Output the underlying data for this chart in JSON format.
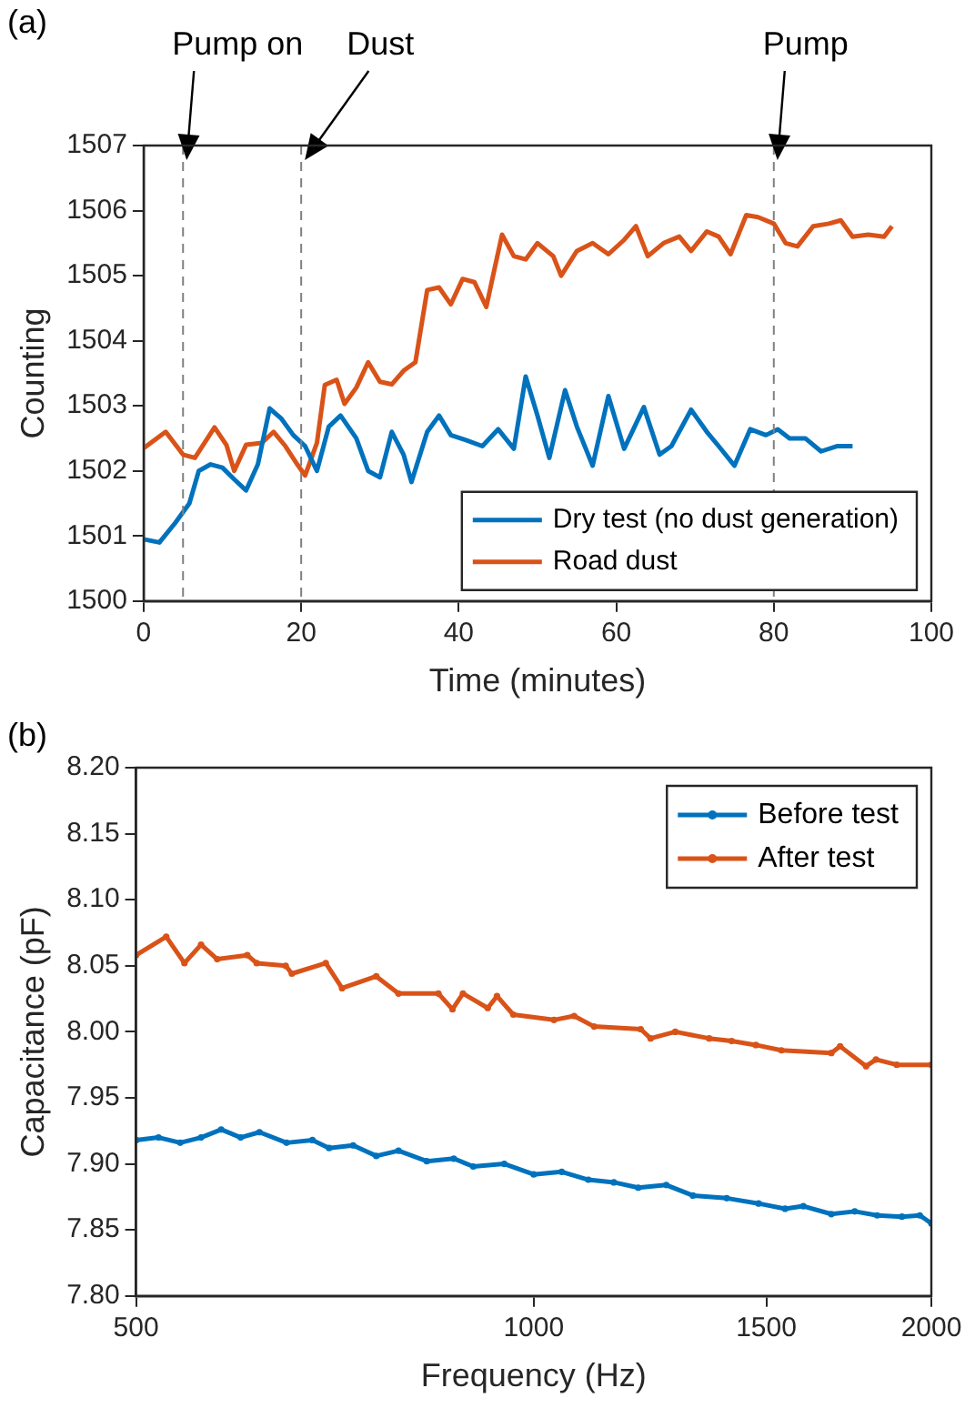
{
  "chart_data": [
    {
      "type": "line",
      "xlabel": "Time (minutes)",
      "ylabel": "Counting",
      "xlim": [
        0,
        100
      ],
      "xticks": [
        0,
        20,
        40,
        60,
        80,
        100
      ],
      "ylim": [
        1500,
        1507
      ],
      "yticks": [
        1500,
        1501,
        1502,
        1503,
        1504,
        1505,
        1506,
        1507
      ],
      "grid": false,
      "legend": "bottom right",
      "annotations": [
        "(a)"
      ],
      "ref_lines": [
        {
          "axis": "x",
          "value": 5,
          "label": "Pump on",
          "color": "#808080",
          "line_style": "dashed"
        },
        {
          "axis": "x",
          "value": 20,
          "label": "Dust",
          "color": "#808080",
          "line_style": "dashed"
        },
        {
          "axis": "x",
          "value": 80,
          "label": "Pump",
          "color": "#808080",
          "line_style": "dashed"
        }
      ],
      "series": [
        {
          "name": "Dry test (no dust generation)",
          "color": "#0072bd",
          "x": [
            0,
            2,
            4,
            5.8,
            7,
            8.5,
            10,
            11.5,
            13,
            14.5,
            16,
            17.5,
            19,
            20.5,
            22,
            23.5,
            25,
            27,
            28.5,
            30,
            31.5,
            33,
            34,
            36,
            37.5,
            39,
            41,
            43,
            45,
            47,
            48.5,
            50,
            51.5,
            53.5,
            55,
            57,
            59,
            61,
            63.5,
            65.5,
            67,
            69.5,
            71.5,
            73,
            75,
            77,
            79,
            80.5,
            82,
            84,
            86,
            88,
            90
          ],
          "values": [
            1500.95,
            1500.9,
            1501.2,
            1501.5,
            1502,
            1502.1,
            1502.05,
            1501.87,
            1501.7,
            1502.1,
            1502.96,
            1502.8,
            1502.55,
            1502.38,
            1502,
            1502.68,
            1502.85,
            1502.5,
            1502,
            1501.9,
            1502.6,
            1502.25,
            1501.83,
            1502.6,
            1502.85,
            1502.55,
            1502.47,
            1502.38,
            1502.64,
            1502.34,
            1503.45,
            1502.85,
            1502.2,
            1503.24,
            1502.68,
            1502.08,
            1503.15,
            1502.34,
            1502.98,
            1502.25,
            1502.38,
            1502.94,
            1502.6,
            1502.38,
            1502.08,
            1502.64,
            1502.55,
            1502.64,
            1502.5,
            1502.5,
            1502.3,
            1502.38,
            1502.38
          ]
        },
        {
          "name": "Road dust",
          "color": "#d95319",
          "x": [
            0,
            2.8,
            5,
            6.5,
            9,
            10.5,
            11.5,
            13,
            15,
            16.5,
            18,
            19.5,
            20.5,
            22,
            23,
            24.5,
            25.5,
            27,
            28.5,
            30,
            31.5,
            33,
            34.5,
            36,
            37.5,
            39,
            40.5,
            42,
            43.5,
            44.5,
            45.5,
            47,
            48.5,
            50,
            52,
            53,
            55,
            57,
            59,
            61,
            62.5,
            64,
            66,
            68,
            69.5,
            71.5,
            73,
            74.5,
            76.5,
            78,
            80,
            81.5,
            83,
            85,
            87,
            88.5,
            90,
            92,
            94,
            95
          ],
          "values": [
            1502.35,
            1502.6,
            1502.25,
            1502.2,
            1502.67,
            1502.4,
            1502,
            1502.4,
            1502.43,
            1502.6,
            1502.38,
            1502.1,
            1501.93,
            1502.43,
            1503.32,
            1503.4,
            1503.03,
            1503.28,
            1503.67,
            1503.37,
            1503.33,
            1503.54,
            1503.67,
            1504.78,
            1504.82,
            1504.56,
            1504.95,
            1504.9,
            1504.52,
            1505.08,
            1505.63,
            1505.3,
            1505.25,
            1505.5,
            1505.3,
            1505,
            1505.38,
            1505.5,
            1505.33,
            1505.55,
            1505.76,
            1505.3,
            1505.5,
            1505.6,
            1505.38,
            1505.68,
            1505.6,
            1505.33,
            1505.93,
            1505.9,
            1505.8,
            1505.5,
            1505.45,
            1505.76,
            1505.8,
            1505.85,
            1505.6,
            1505.63,
            1505.6,
            1505.76
          ]
        }
      ]
    },
    {
      "type": "line",
      "xlabel": "Frequency (Hz)",
      "ylabel": "Capacitance (pF)",
      "log": "x",
      "xlim": [
        500,
        2000
      ],
      "xticks": [
        500,
        1000,
        1500,
        2000
      ],
      "ylim": [
        7.8,
        8.2
      ],
      "yticks": [
        {
          "value": 7.8,
          "label": "7.80"
        },
        {
          "value": 7.85,
          "label": "7.85"
        },
        {
          "value": 7.9,
          "label": "7.90"
        },
        {
          "value": 7.95,
          "label": "7.95"
        },
        {
          "value": 8,
          "label": "8.00"
        },
        {
          "value": 8.05,
          "label": "8.05"
        },
        {
          "value": 8.1,
          "label": "8.10"
        },
        {
          "value": 8.15,
          "label": "8.15"
        },
        {
          "value": 8.2,
          "label": "8.20"
        }
      ],
      "grid": false,
      "legend": "top right",
      "marker": "circle",
      "annotations": [
        "(b)"
      ],
      "series": [
        {
          "name": "Before test",
          "color": "#0072bd",
          "x": [
            500,
            520,
            540,
            560,
            580,
            600,
            620,
            650,
            680,
            700,
            730,
            760,
            790,
            830,
            870,
            900,
            950,
            1000,
            1050,
            1100,
            1150,
            1200,
            1260,
            1320,
            1400,
            1480,
            1550,
            1600,
            1680,
            1750,
            1820,
            1900,
            1960,
            2000
          ],
          "values": [
            7.918,
            7.92,
            7.916,
            7.92,
            7.926,
            7.92,
            7.924,
            7.916,
            7.918,
            7.912,
            7.914,
            7.906,
            7.91,
            7.902,
            7.904,
            7.898,
            7.9,
            7.892,
            7.894,
            7.888,
            7.886,
            7.882,
            7.884,
            7.876,
            7.874,
            7.87,
            7.866,
            7.868,
            7.862,
            7.864,
            7.861,
            7.86,
            7.861,
            7.855
          ]
        },
        {
          "name": "After test",
          "color": "#d95319",
          "x": [
            500,
            527,
            544,
            560,
            576,
            607,
            617,
            649,
            656,
            696,
            716,
            760,
            790,
            847,
            868,
            884,
            923,
            938,
            965,
            1036,
            1073,
            1111,
            1205,
            1226,
            1280,
            1358,
            1412,
            1473,
            1540,
            1680,
            1706,
            1785,
            1816,
            1883,
            2000
          ],
          "values": [
            8.058,
            8.072,
            8.052,
            8.066,
            8.055,
            8.058,
            8.052,
            8.05,
            8.044,
            8.052,
            8.033,
            8.042,
            8.029,
            8.029,
            8.017,
            8.029,
            8.018,
            8.027,
            8.013,
            8.009,
            8.012,
            8.004,
            8.002,
            7.995,
            8,
            7.995,
            7.993,
            7.99,
            7.986,
            7.984,
            7.989,
            7.974,
            7.979,
            7.975,
            7.975
          ]
        }
      ]
    }
  ]
}
